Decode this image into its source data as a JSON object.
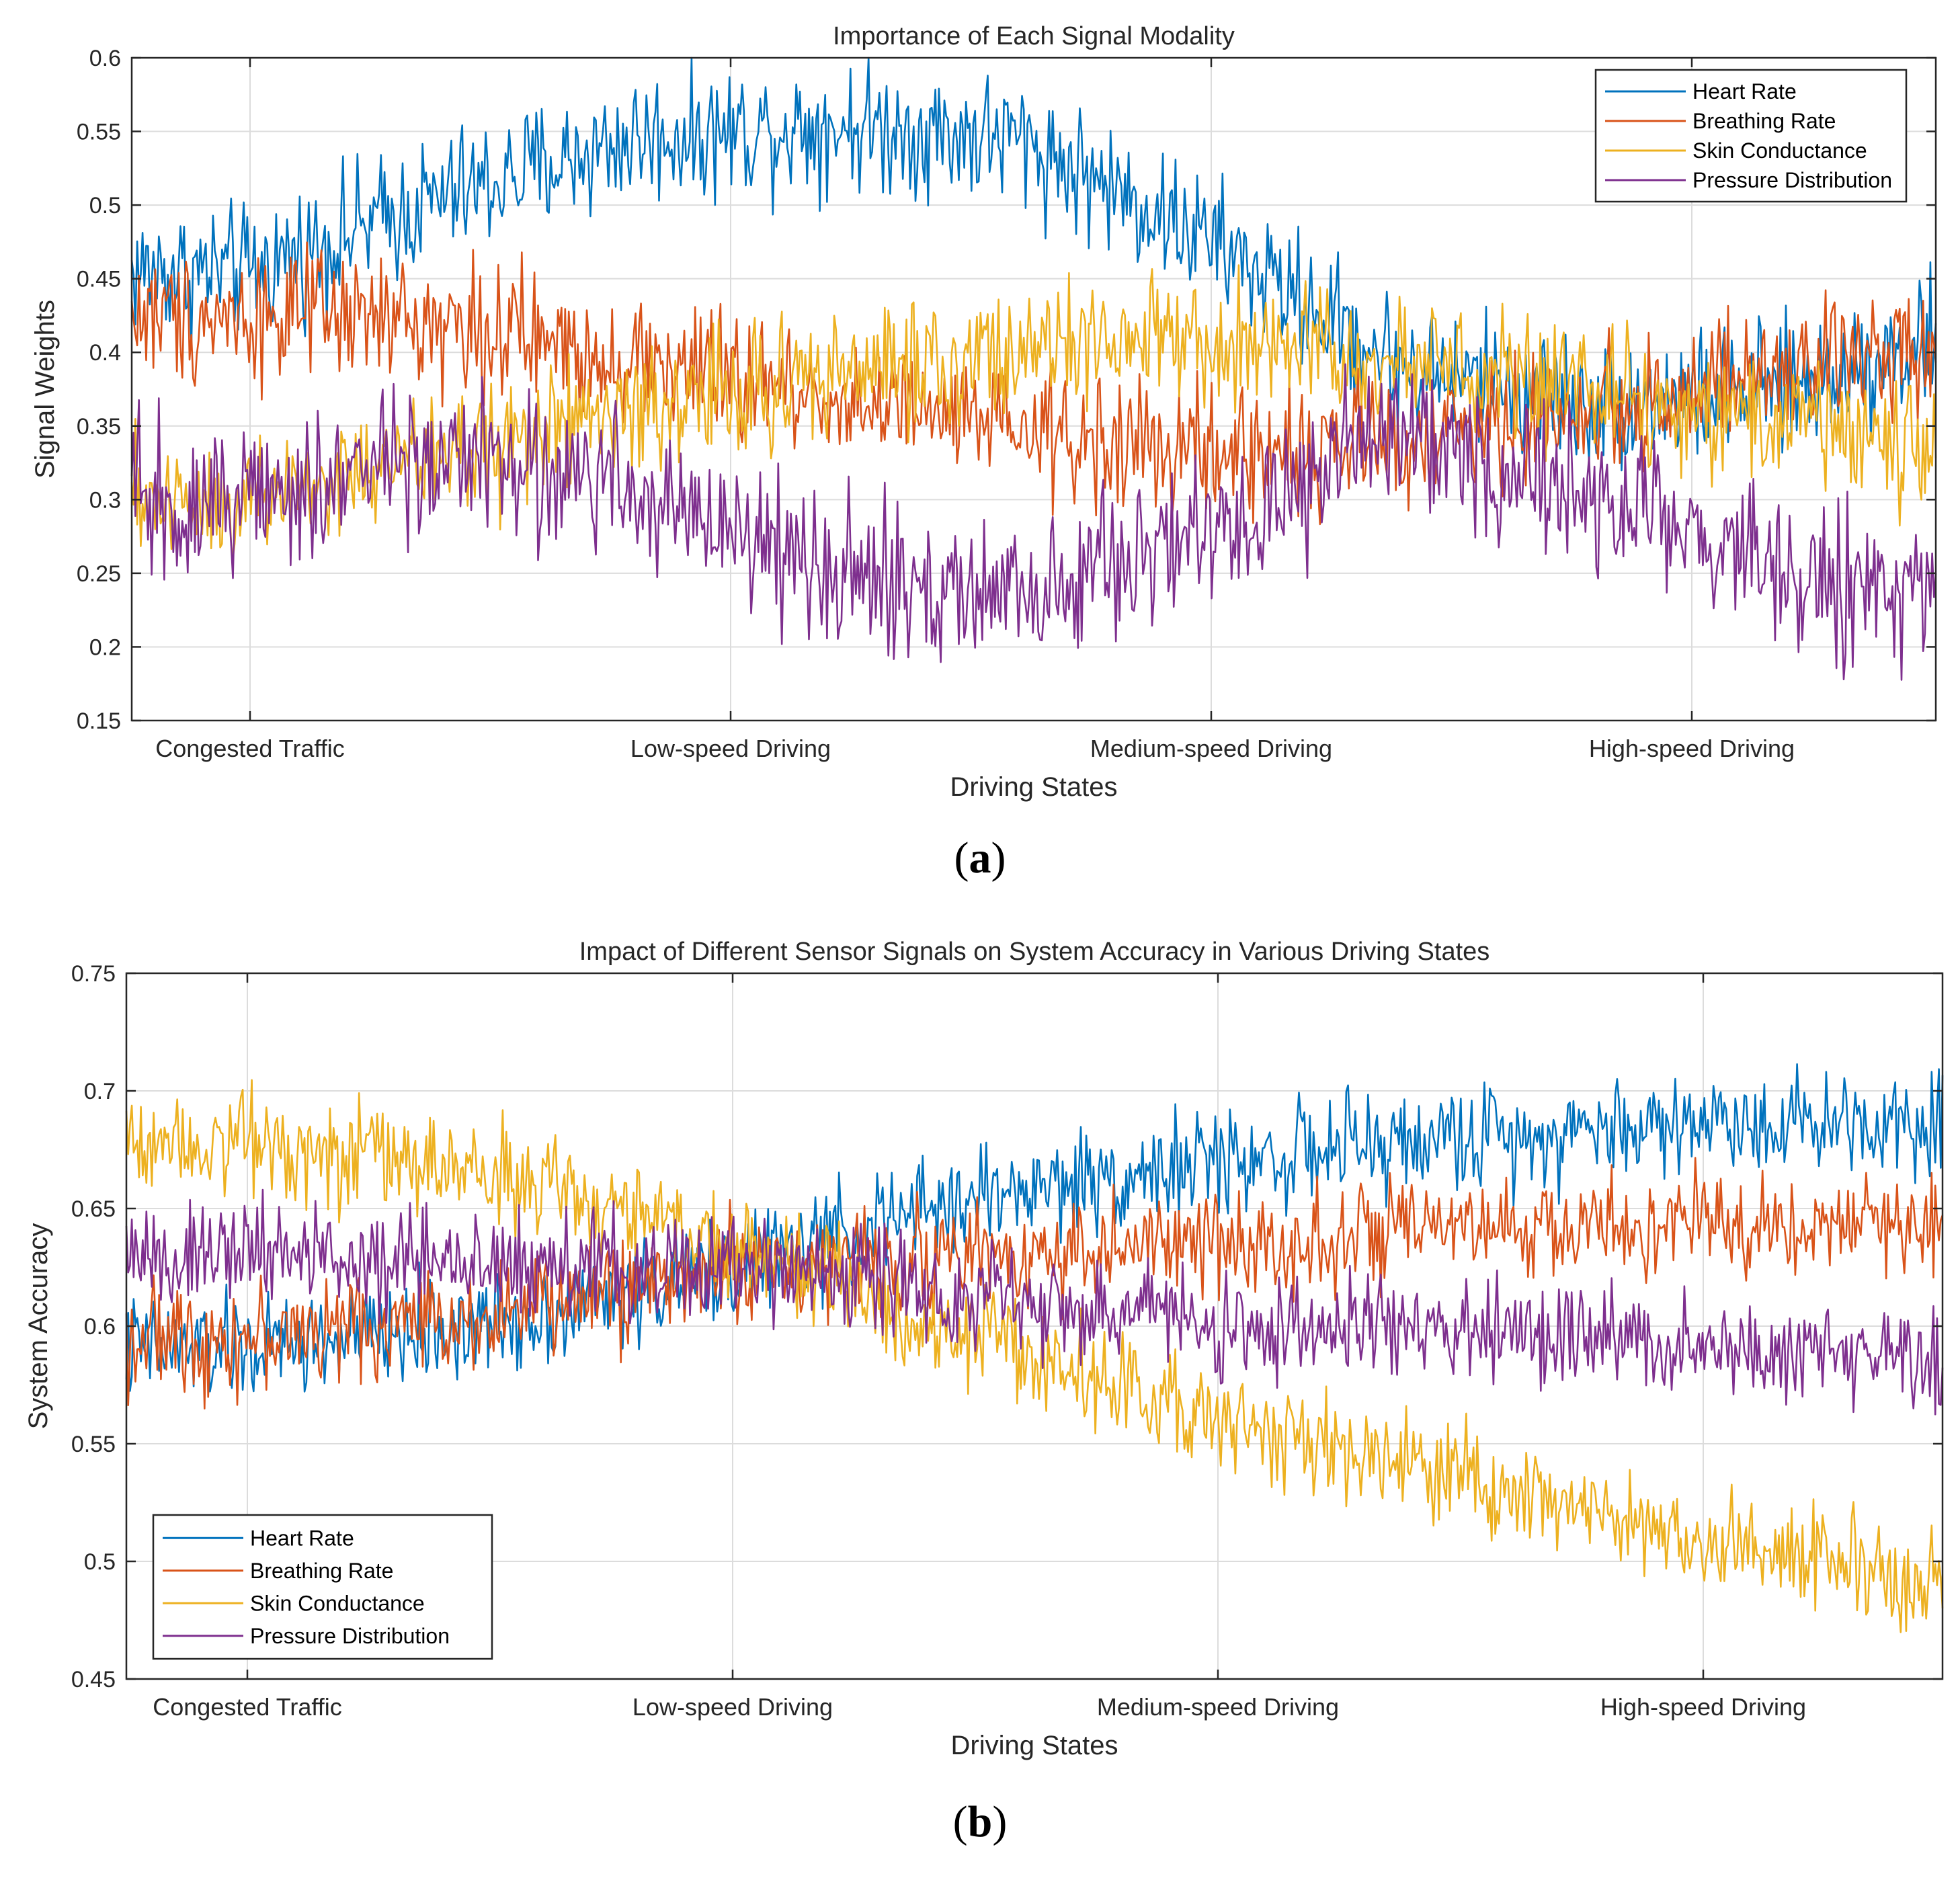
{
  "chart_data": [
    {
      "panel_label": "a",
      "type": "line",
      "title": "Importance of Each Signal Modality",
      "xlabel": "Driving States",
      "ylabel": "Signal Weights",
      "ylim": [
        0.15,
        0.6
      ],
      "yticks": [
        "0.15",
        "0.2",
        "0.25",
        "0.3",
        "0.35",
        "0.4",
        "0.45",
        "0.5",
        "0.55",
        "0.6"
      ],
      "categories": [
        "Congested Traffic",
        "Low-speed Driving",
        "Medium-speed Driving",
        "High-speed Driving"
      ],
      "grid": true,
      "legend_position": "top-right",
      "colors": [
        "#0072BD",
        "#D95319",
        "#EDB120",
        "#7E2F8E"
      ],
      "series": [
        {
          "name": "Heart Rate",
          "x": [
            0,
            0.4,
            0.8,
            1.2,
            1.6,
            2.0,
            2.4,
            2.8,
            3.2,
            3.6,
            3.745
          ],
          "values": [
            0.455,
            0.505,
            0.545,
            0.555,
            0.545,
            0.475,
            0.39,
            0.365,
            0.375,
            0.42,
            0.445
          ],
          "noise": 0.022
        },
        {
          "name": "Breathing Rate",
          "x": [
            0,
            0.4,
            0.8,
            1.2,
            1.6,
            2.0,
            2.4,
            2.8,
            3.2,
            3.6,
            3.745
          ],
          "values": [
            0.425,
            0.42,
            0.395,
            0.37,
            0.345,
            0.33,
            0.34,
            0.36,
            0.385,
            0.42,
            0.435
          ],
          "noise": 0.022
        },
        {
          "name": "Skin Conductance",
          "x": [
            0,
            0.4,
            0.8,
            1.2,
            1.6,
            2.0,
            2.4,
            2.8,
            3.2,
            3.6,
            3.745
          ],
          "values": [
            0.3,
            0.33,
            0.36,
            0.385,
            0.4,
            0.405,
            0.395,
            0.375,
            0.355,
            0.325,
            0.31
          ],
          "noise": 0.022
        },
        {
          "name": "Pressure Distribution",
          "x": [
            0,
            0.4,
            0.8,
            1.2,
            1.6,
            2.0,
            2.4,
            2.8,
            3.2,
            3.6,
            3.745
          ],
          "values": [
            0.3,
            0.33,
            0.31,
            0.25,
            0.23,
            0.28,
            0.345,
            0.3,
            0.245,
            0.235,
            0.275
          ],
          "noise": 0.025
        }
      ]
    },
    {
      "panel_label": "b",
      "type": "line",
      "title": "Impact of Different Sensor Signals on System Accuracy in Various Driving States",
      "xlabel": "Driving States",
      "ylabel": "System Accuracy",
      "ylim": [
        0.45,
        0.75
      ],
      "yticks": [
        "0.45",
        "0.5",
        "0.55",
        "0.6",
        "0.65",
        "0.7",
        "0.75"
      ],
      "categories": [
        "Congested Traffic",
        "Low-speed Driving",
        "Medium-speed Driving",
        "High-speed Driving"
      ],
      "grid": true,
      "legend_position": "bottom-left",
      "colors": [
        "#0072BD",
        "#D95319",
        "#EDB120",
        "#7E2F8E"
      ],
      "series": [
        {
          "name": "Heart Rate",
          "x": [
            0,
            0.5,
            1.0,
            1.5,
            2.0,
            2.5,
            3.0,
            3.5,
            3.745
          ],
          "values": [
            0.59,
            0.6,
            0.625,
            0.655,
            0.67,
            0.68,
            0.687,
            0.688,
            0.688
          ],
          "noise": 0.011
        },
        {
          "name": "Breathing Rate",
          "x": [
            0,
            0.5,
            1.0,
            1.5,
            2.0,
            2.5,
            3.0,
            3.5,
            3.745
          ],
          "values": [
            0.595,
            0.605,
            0.625,
            0.63,
            0.635,
            0.64,
            0.643,
            0.643,
            0.643
          ],
          "noise": 0.011
        },
        {
          "name": "Skin Conductance",
          "x": [
            0,
            0.5,
            1.0,
            1.5,
            2.0,
            2.5,
            3.0,
            3.5,
            3.745
          ],
          "values": [
            0.68,
            0.665,
            0.635,
            0.595,
            0.56,
            0.535,
            0.51,
            0.49,
            0.485
          ],
          "noise": 0.011
        },
        {
          "name": "Pressure Distribution",
          "x": [
            0,
            0.5,
            1.0,
            1.5,
            2.0,
            2.5,
            3.0,
            3.5,
            3.745
          ],
          "values": [
            0.63,
            0.625,
            0.625,
            0.615,
            0.6,
            0.598,
            0.592,
            0.585,
            0.583
          ],
          "noise": 0.011
        }
      ]
    }
  ]
}
